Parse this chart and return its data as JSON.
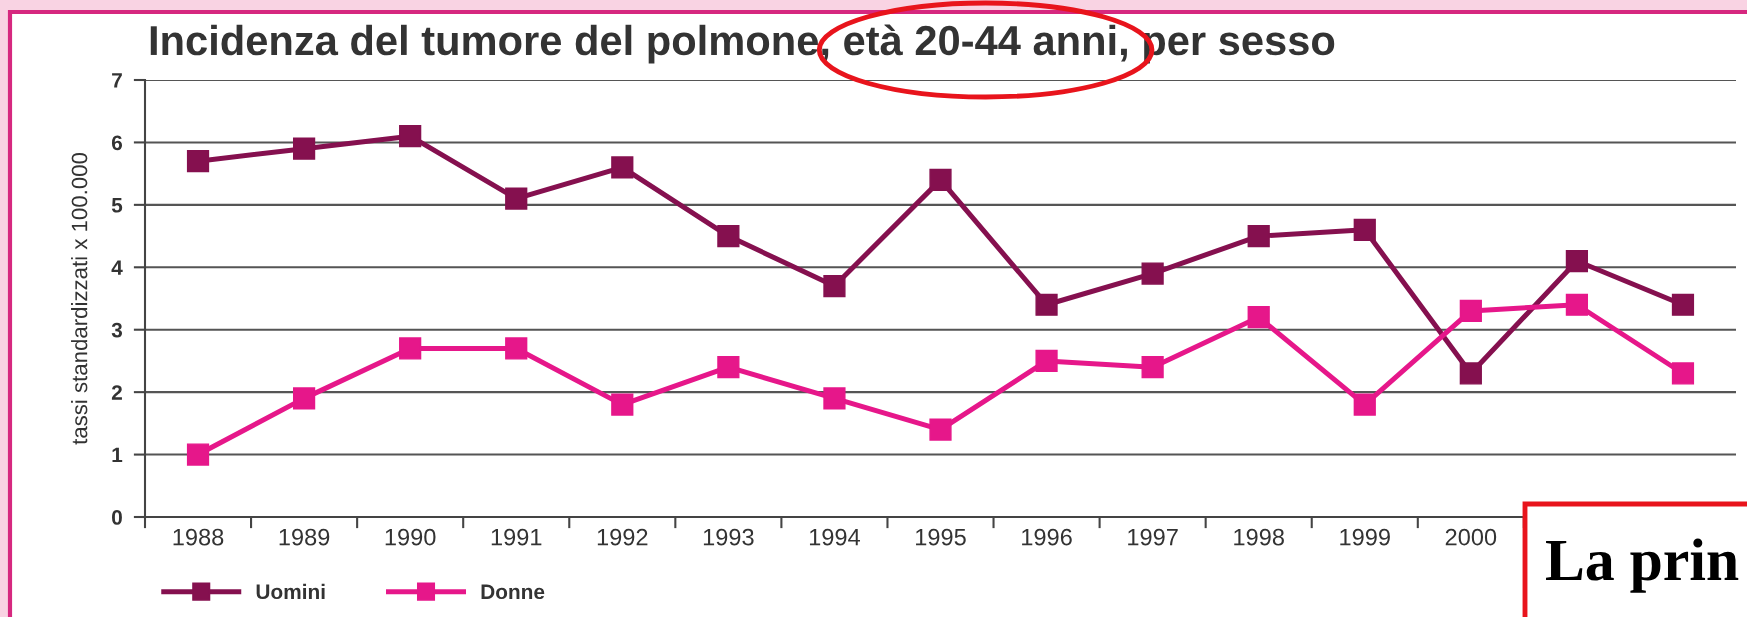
{
  "chart_data": {
    "type": "line",
    "title": "Incidenza del tumore del polmone, età 20-44 anni, per sesso",
    "ylabel": "tassi standardizzati x 100.000",
    "categories": [
      "1988",
      "1989",
      "1990",
      "1991",
      "1992",
      "1993",
      "1994",
      "1995",
      "1996",
      "1997",
      "1998",
      "1999",
      "2000",
      null,
      null
    ],
    "series": [
      {
        "name": "Uomini",
        "color": "#85104f",
        "values": [
          5.7,
          5.9,
          6.1,
          5.1,
          5.6,
          4.5,
          3.7,
          5.4,
          3.4,
          3.9,
          4.5,
          4.6,
          2.3,
          4.1,
          3.4
        ]
      },
      {
        "name": "Donne",
        "color": "#e6178a",
        "values": [
          1.0,
          1.9,
          2.7,
          2.7,
          1.8,
          2.4,
          1.9,
          1.4,
          2.5,
          2.4,
          3.2,
          1.8,
          3.3,
          3.4,
          2.3
        ]
      }
    ],
    "ylim": [
      0,
      7
    ],
    "yticks": [
      0,
      1,
      2,
      3,
      4,
      5,
      6,
      7
    ],
    "grid": "y",
    "legend": "bottom",
    "marker": "square",
    "line_style": "solid",
    "annotations": [
      "La prin"
    ]
  }
}
